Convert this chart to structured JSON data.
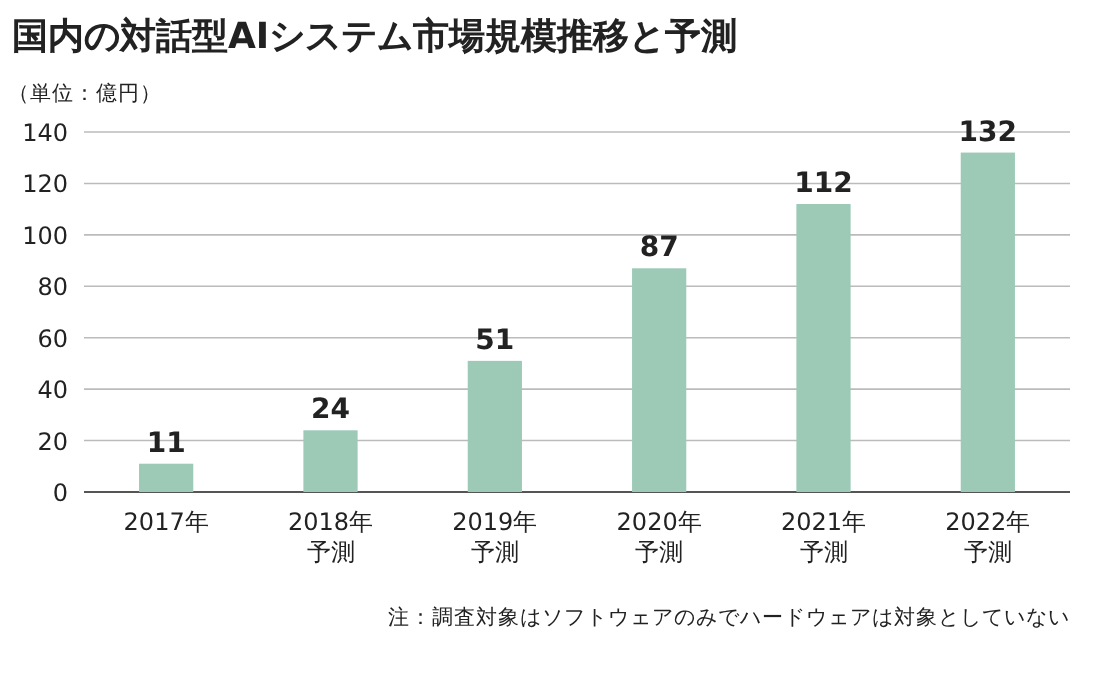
{
  "chart_data": {
    "type": "bar",
    "title": "国内の対話型AIシステム市場規模推移と予測",
    "ylabel": "（単位：億円）",
    "categories": [
      "2017年",
      "2018年予測",
      "2019年予測",
      "2020年予測",
      "2021年予測",
      "2022年予測"
    ],
    "values": [
      11,
      24,
      51,
      87,
      112,
      132
    ],
    "color": "#9ccab7",
    "data_labels": true,
    "ylim": [
      0,
      140
    ],
    "yticks": [
      0,
      20,
      40,
      60,
      80,
      100,
      120,
      140
    ],
    "grid": "y",
    "annotations": [
      "注：調査対象はソフトウェアのみでハードウェアは対象としていない"
    ]
  }
}
